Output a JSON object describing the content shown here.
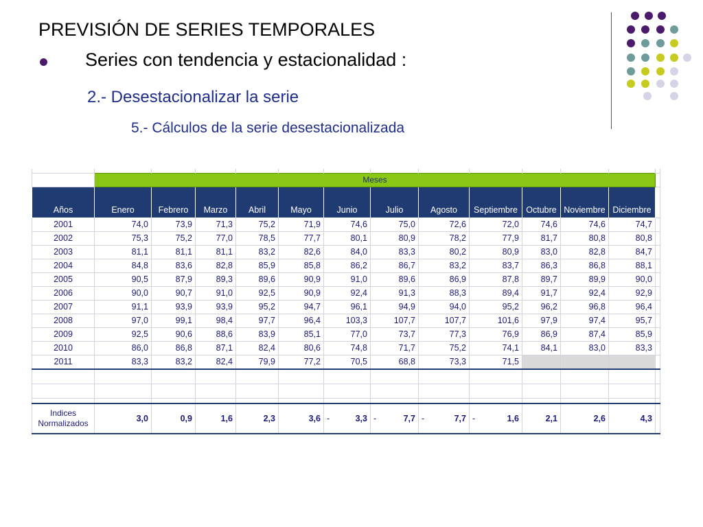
{
  "slide": {
    "title": "PREVISIÓN DE SERIES TEMPORALES",
    "bullet": "Series con tendencia y estacionalidad :",
    "sub1": "2.- Desestacionalizar la serie",
    "sub2": "5.- Cálculos de la serie desestacionalizada"
  },
  "colors": {
    "purple": "#4b1a6b",
    "teal": "#6f9c9a",
    "yellow": "#c8cb1f",
    "lavender": "#d4d4e6",
    "header_blue": "#203a72",
    "meses_green": "#8ac715"
  },
  "table": {
    "group_label": "Meses",
    "year_header": "Años",
    "months": [
      "Enero",
      "Febrero",
      "Marzo",
      "Abril",
      "Mayo",
      "Junio",
      "Julio",
      "Agosto",
      "Septiembre",
      "Octubre",
      "Noviembre",
      "Diciembre"
    ],
    "rows": [
      {
        "year": "2001",
        "values": [
          "74,0",
          "73,9",
          "71,3",
          "75,2",
          "71,9",
          "74,6",
          "75,0",
          "72,6",
          "72,0",
          "74,6",
          "74,6",
          "74,7"
        ]
      },
      {
        "year": "2002",
        "values": [
          "75,3",
          "75,2",
          "77,0",
          "78,5",
          "77,7",
          "80,1",
          "80,9",
          "78,2",
          "77,9",
          "81,7",
          "80,8",
          "80,8"
        ]
      },
      {
        "year": "2003",
        "values": [
          "81,1",
          "81,1",
          "81,1",
          "83,2",
          "82,6",
          "84,0",
          "83,3",
          "80,2",
          "80,9",
          "83,0",
          "82,8",
          "84,7"
        ]
      },
      {
        "year": "2004",
        "values": [
          "84,8",
          "83,6",
          "82,8",
          "85,9",
          "85,8",
          "86,2",
          "86,7",
          "83,2",
          "83,7",
          "86,3",
          "86,8",
          "88,1"
        ]
      },
      {
        "year": "2005",
        "values": [
          "90,5",
          "87,9",
          "89,3",
          "89,6",
          "90,9",
          "91,0",
          "89,6",
          "86,9",
          "87,8",
          "89,7",
          "89,9",
          "90,0"
        ]
      },
      {
        "year": "2006",
        "values": [
          "90,0",
          "90,7",
          "91,0",
          "92,5",
          "90,9",
          "92,4",
          "91,3",
          "88,3",
          "89,4",
          "91,7",
          "92,4",
          "92,9"
        ]
      },
      {
        "year": "2007",
        "values": [
          "91,1",
          "93,9",
          "93,9",
          "95,2",
          "94,7",
          "96,1",
          "94,9",
          "94,0",
          "95,2",
          "96,2",
          "96,8",
          "96,4"
        ]
      },
      {
        "year": "2008",
        "values": [
          "97,0",
          "99,1",
          "98,4",
          "97,7",
          "96,4",
          "103,3",
          "107,7",
          "107,7",
          "101,6",
          "97,9",
          "97,4",
          "95,7"
        ]
      },
      {
        "year": "2009",
        "values": [
          "92,5",
          "90,6",
          "88,6",
          "83,9",
          "85,1",
          "77,0",
          "73,7",
          "77,3",
          "76,9",
          "86,9",
          "87,4",
          "85,9"
        ]
      },
      {
        "year": "2010",
        "values": [
          "86,0",
          "86,8",
          "87,1",
          "82,4",
          "80,6",
          "74,8",
          "71,7",
          "75,2",
          "74,1",
          "84,1",
          "83,0",
          "83,3"
        ]
      },
      {
        "year": "2011",
        "values": [
          "83,3",
          "83,2",
          "82,4",
          "79,9",
          "77,2",
          "70,5",
          "68,8",
          "73,3",
          "71,5",
          "",
          "",
          ""
        ]
      }
    ],
    "indices_label_1": "Indices",
    "indices_label_2": "Normalizados",
    "indices": [
      {
        "sign": "",
        "value": "3,0"
      },
      {
        "sign": "",
        "value": "0,9"
      },
      {
        "sign": "",
        "value": "1,6"
      },
      {
        "sign": "",
        "value": "2,3"
      },
      {
        "sign": "",
        "value": "3,6"
      },
      {
        "sign": "-",
        "value": "3,3"
      },
      {
        "sign": "-",
        "value": "7,7"
      },
      {
        "sign": "-",
        "value": "7,7"
      },
      {
        "sign": "-",
        "value": "1,6"
      },
      {
        "sign": "",
        "value": "2,1"
      },
      {
        "sign": "",
        "value": "2,6"
      },
      {
        "sign": "",
        "value": "4,3"
      }
    ]
  }
}
